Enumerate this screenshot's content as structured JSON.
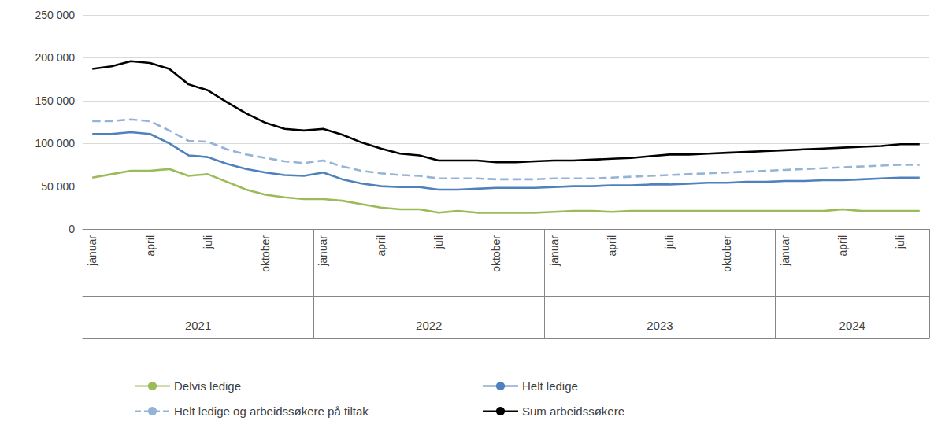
{
  "chart_data": {
    "type": "line",
    "categories": [
      "januar",
      null,
      null,
      "april",
      null,
      null,
      "juli",
      null,
      null,
      "oktober",
      null,
      null,
      "januar",
      null,
      null,
      "april",
      null,
      null,
      "juli",
      null,
      null,
      "oktober",
      null,
      null,
      "januar",
      null,
      null,
      "april",
      null,
      null,
      "juli",
      null,
      null,
      "oktober",
      null,
      null,
      "januar",
      null,
      null,
      "april",
      null,
      null,
      "juli",
      null
    ],
    "x_groups": [
      {
        "label": "2021",
        "count": 12
      },
      {
        "label": "2022",
        "count": 12
      },
      {
        "label": "2023",
        "count": 12
      },
      {
        "label": "2024",
        "count": 8
      }
    ],
    "ylim": [
      0,
      250000
    ],
    "yticks": [
      0,
      {
        "value": 50000,
        "label": "50 000"
      },
      {
        "value": 100000,
        "label": "100 000"
      },
      {
        "value": 150000,
        "label": "150 000"
      },
      {
        "value": 200000,
        "label": "200 000"
      },
      {
        "value": 250000,
        "label": "250 000"
      }
    ],
    "grid": true,
    "legend": "bottom",
    "series": [
      {
        "name": "Delvis ledige",
        "color": "#9bbb59",
        "line_style": "solid",
        "values": [
          60000,
          64000,
          68000,
          68000,
          70000,
          62000,
          64000,
          55000,
          46000,
          40000,
          37000,
          35000,
          35000,
          33000,
          29000,
          25000,
          23000,
          23000,
          19000,
          21000,
          19000,
          19000,
          19000,
          19000,
          20000,
          21000,
          21000,
          20000,
          21000,
          21000,
          21000,
          21000,
          21000,
          21000,
          21000,
          21000,
          21000,
          21000,
          21000,
          23000,
          21000,
          21000,
          21000,
          21000
        ]
      },
      {
        "name": "Helt ledige",
        "color": "#4f81bd",
        "line_style": "solid",
        "values": [
          111000,
          111000,
          113000,
          111000,
          100000,
          86000,
          84000,
          76000,
          70000,
          66000,
          63000,
          62000,
          66000,
          58000,
          53000,
          50000,
          49000,
          49000,
          46000,
          46000,
          47000,
          48000,
          48000,
          48000,
          49000,
          50000,
          50000,
          51000,
          51000,
          52000,
          52000,
          53000,
          54000,
          54000,
          55000,
          55000,
          56000,
          56000,
          57000,
          57000,
          58000,
          59000,
          60000,
          60000
        ]
      },
      {
        "name": "Helt ledige og arbeidssøkere på tiltak",
        "color": "#95b3d7",
        "line_style": "dashed",
        "values": [
          126000,
          126000,
          128000,
          126000,
          115000,
          103000,
          102000,
          93000,
          87000,
          83000,
          79000,
          77000,
          80000,
          73000,
          68000,
          65000,
          63000,
          62000,
          59000,
          59000,
          59000,
          58000,
          58000,
          58000,
          59000,
          59000,
          59000,
          60000,
          61000,
          62000,
          63000,
          64000,
          65000,
          66000,
          67000,
          68000,
          69000,
          70000,
          71000,
          72000,
          73000,
          74000,
          75000,
          75000
        ]
      },
      {
        "name": "Sum arbeidssøkere",
        "color": "#000000",
        "line_style": "solid",
        "values": [
          187000,
          190000,
          196000,
          194000,
          187000,
          169000,
          162000,
          148000,
          135000,
          124000,
          117000,
          115000,
          117000,
          110000,
          101000,
          94000,
          88000,
          86000,
          80000,
          80000,
          80000,
          78000,
          78000,
          79000,
          80000,
          80000,
          81000,
          82000,
          83000,
          85000,
          87000,
          87000,
          88000,
          89000,
          90000,
          91000,
          92000,
          93000,
          94000,
          95000,
          96000,
          97000,
          99000,
          99000
        ]
      }
    ]
  }
}
